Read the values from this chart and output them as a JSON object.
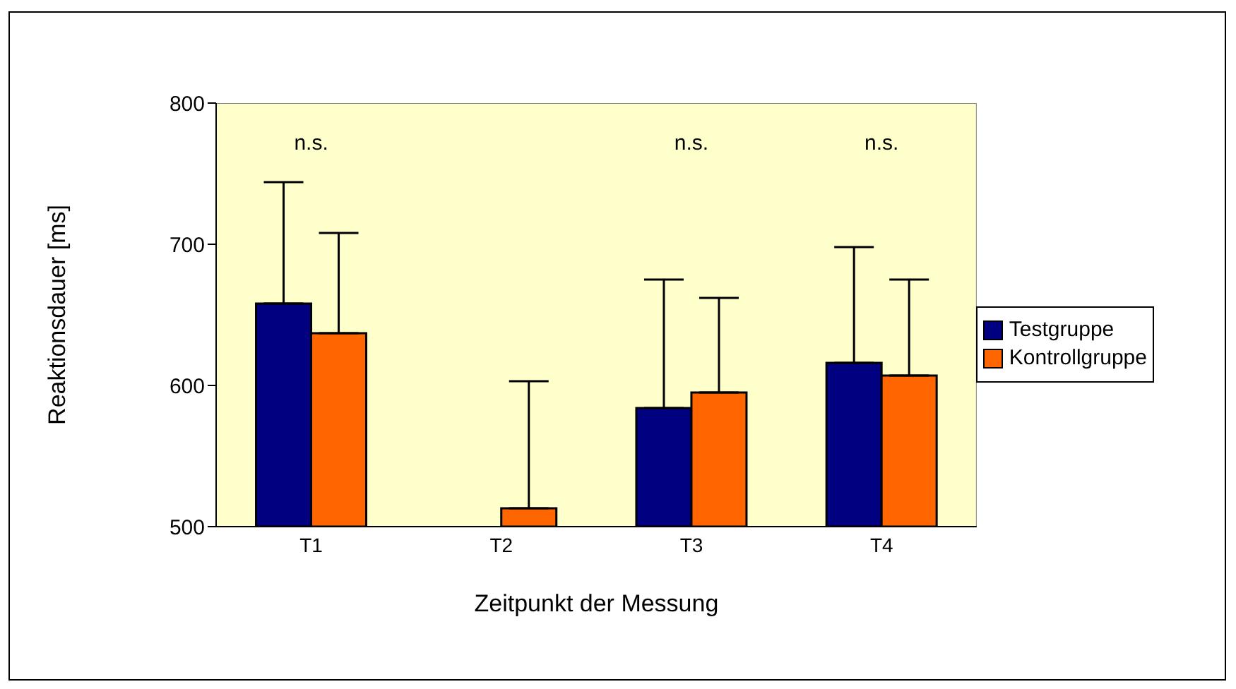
{
  "chart_data": {
    "type": "bar",
    "xlabel": "Zeitpunkt der Messung",
    "ylabel": "Reaktionsdauer [ms]",
    "categories": [
      "T1",
      "T2",
      "T3",
      "T4"
    ],
    "series": [
      {
        "name": "Testgruppe",
        "color": "#000080",
        "values": [
          658,
          null,
          584,
          616
        ],
        "errors": [
          [
            658,
            744
          ],
          null,
          [
            584,
            675
          ],
          [
            616,
            698
          ]
        ]
      },
      {
        "name": "Kontrollgruppe",
        "color": "#ff6600",
        "values": [
          637,
          513,
          595,
          607
        ],
        "errors": [
          [
            637,
            708
          ],
          [
            513,
            603
          ],
          [
            595,
            662
          ],
          [
            607,
            675
          ]
        ]
      }
    ],
    "ylim": [
      500,
      800
    ],
    "yticks": [
      500,
      600,
      700,
      800
    ],
    "grid": false,
    "legend": "right",
    "annotations": [
      "n.s.",
      "n.s.",
      "n.s."
    ]
  }
}
